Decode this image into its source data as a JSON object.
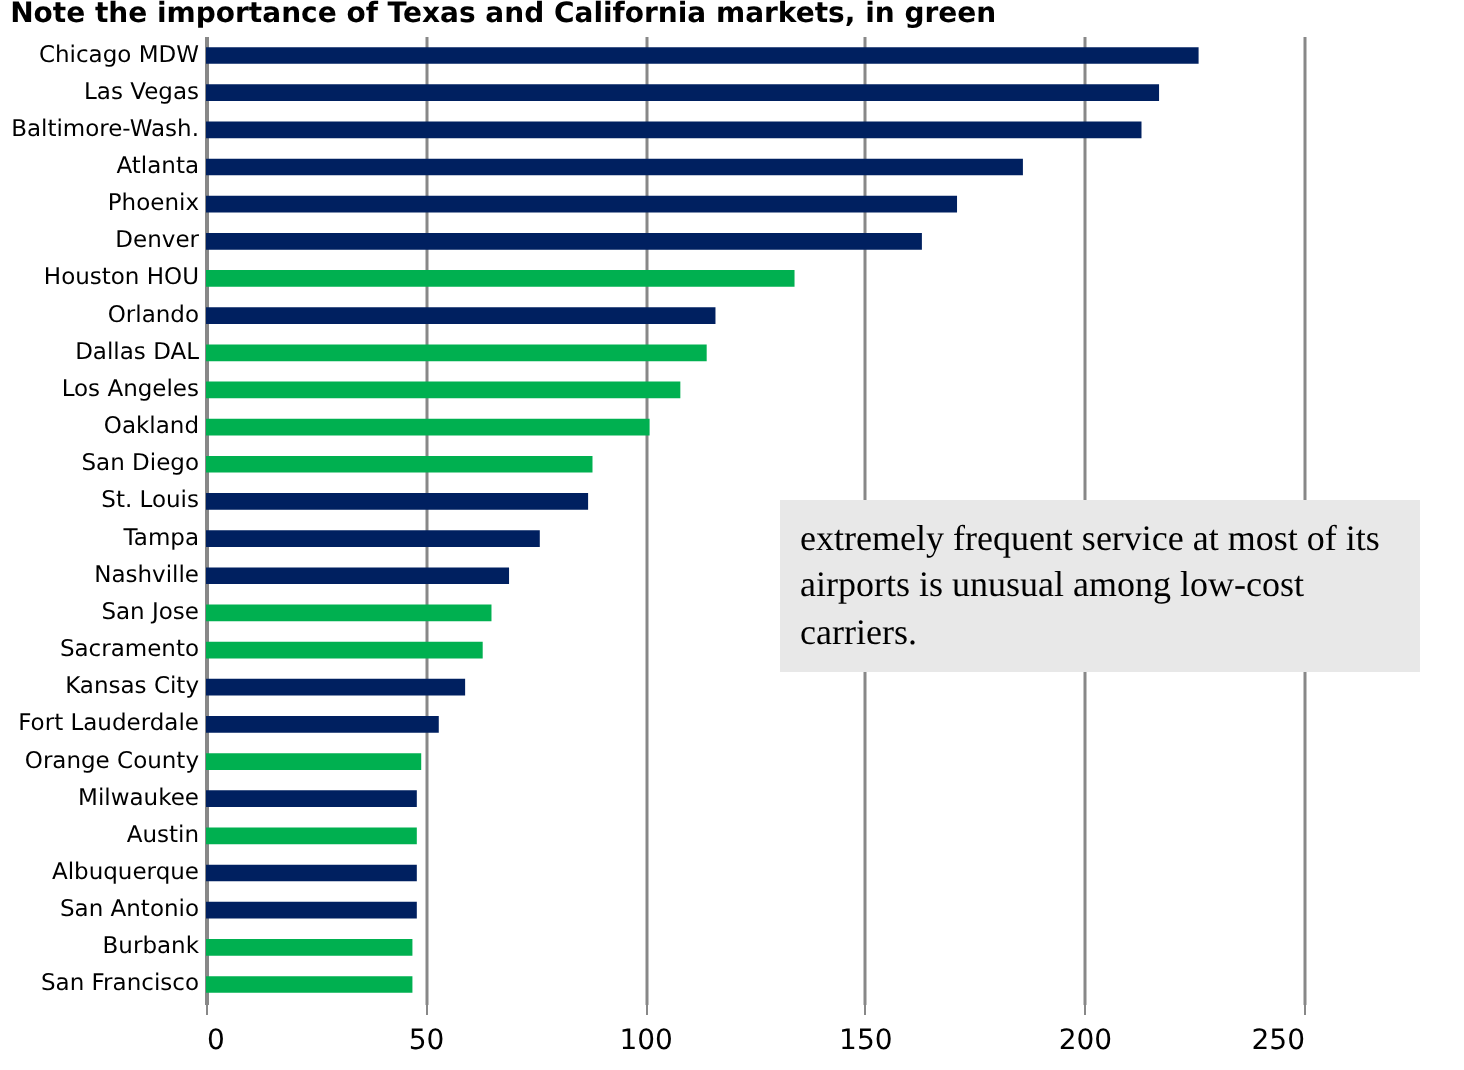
{
  "chart_data": {
    "type": "bar",
    "orientation": "horizontal",
    "title": "Note the importance of Texas and California markets, in green",
    "categories": [
      "Chicago MDW",
      "Las Vegas",
      "Baltimore-Wash.",
      "Atlanta",
      "Phoenix",
      "Denver",
      "Houston HOU",
      "Orlando",
      "Dallas DAL",
      "Los Angeles",
      "Oakland",
      "San Diego",
      "St. Louis",
      "Tampa",
      "Nashville",
      "San Jose",
      "Sacramento",
      "Kansas City",
      "Fort Lauderdale",
      "Orange County",
      "Milwaukee",
      "Austin",
      "Albuquerque",
      "San Antonio",
      "Burbank",
      "San Francisco"
    ],
    "values": [
      226,
      217,
      213,
      186,
      171,
      163,
      134,
      116,
      114,
      108,
      101,
      88,
      87,
      76,
      69,
      65,
      63,
      59,
      53,
      49,
      48,
      48,
      48,
      48,
      47,
      47
    ],
    "colors": [
      "#002060",
      "#002060",
      "#002060",
      "#002060",
      "#002060",
      "#002060",
      "#00b050",
      "#002060",
      "#00b050",
      "#00b050",
      "#00b050",
      "#00b050",
      "#002060",
      "#002060",
      "#002060",
      "#00b050",
      "#00b050",
      "#002060",
      "#002060",
      "#00b050",
      "#002060",
      "#00b050",
      "#002060",
      "#002060",
      "#00b050",
      "#00b050"
    ],
    "xlim": [
      0,
      250
    ],
    "xticks": [
      0,
      50,
      100,
      150,
      200,
      250
    ],
    "grid": "x",
    "annotations": [
      "extremely frequent service at most of its airports is unusual among low-cost carriers."
    ]
  }
}
